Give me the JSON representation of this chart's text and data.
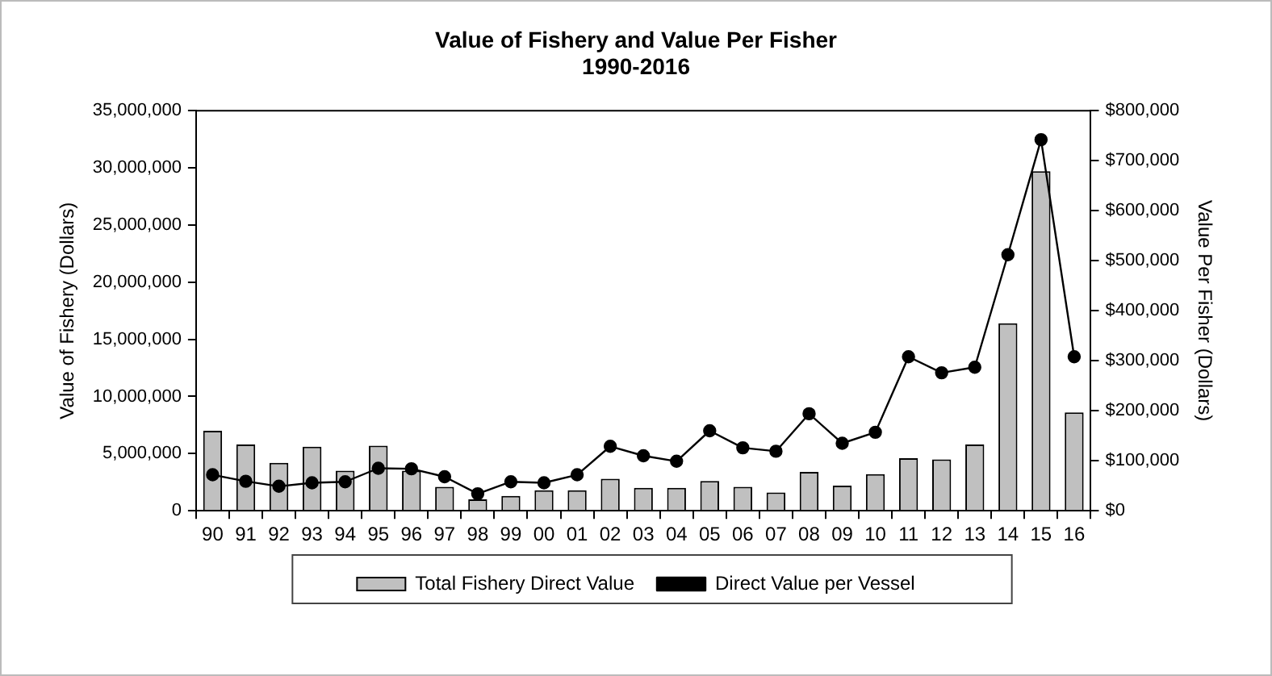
{
  "chart_data": {
    "type": "bar",
    "title": "Value of Fishery and Value Per Fisher",
    "subtitle": "1990-2016",
    "ylabel": "Value of Fishery (Dollars)",
    "y2label": "Value Per Fisher (Dollars)",
    "categories": [
      "90",
      "91",
      "92",
      "93",
      "94",
      "95",
      "96",
      "97",
      "98",
      "99",
      "00",
      "01",
      "02",
      "03",
      "04",
      "05",
      "06",
      "07",
      "08",
      "09",
      "10",
      "11",
      "12",
      "13",
      "14",
      "15",
      "16"
    ],
    "series": [
      {
        "name": "Total Fishery Direct Value",
        "color": "#c0c0c0",
        "values": [
          7000000,
          5800000,
          4200000,
          5600000,
          3500000,
          5700000,
          3500000,
          2100000,
          1000000,
          1300000,
          1800000,
          1800000,
          2800000,
          2000000,
          2000000,
          2600000,
          2100000,
          1600000,
          3400000,
          2200000,
          3200000,
          4600000,
          4500000,
          5800000,
          16400000,
          29700000,
          8600000
        ]
      },
      {
        "name": "Direct Value per Vessel",
        "type": "line",
        "axis": "y2",
        "color": "#000000",
        "marker": "circle",
        "values": [
          72000,
          59000,
          49000,
          56000,
          58000,
          85000,
          84000,
          68000,
          34000,
          58000,
          56000,
          72000,
          129000,
          110000,
          99000,
          160000,
          126000,
          119000,
          194000,
          135000,
          157000,
          308000,
          276000,
          287000,
          512000,
          742000,
          308000
        ]
      }
    ],
    "ylim": [
      0,
      35000000
    ],
    "yticks": [
      {
        "value": 0,
        "label": "0"
      },
      {
        "value": 5000000,
        "label": "5,000,000"
      },
      {
        "value": 10000000,
        "label": "10,000,000"
      },
      {
        "value": 15000000,
        "label": "15,000,000"
      },
      {
        "value": 20000000,
        "label": "20,000,000"
      },
      {
        "value": 25000000,
        "label": "25,000,000"
      },
      {
        "value": 30000000,
        "label": "30,000,000"
      },
      {
        "value": 35000000,
        "label": "35,000,000"
      }
    ],
    "y2lim": [
      0,
      800000
    ],
    "y2ticks": [
      {
        "value": 0,
        "label": "$0"
      },
      {
        "value": 100000,
        "label": "$100,000"
      },
      {
        "value": 200000,
        "label": "$200,000"
      },
      {
        "value": 300000,
        "label": "$300,000"
      },
      {
        "value": 400000,
        "label": "$400,000"
      },
      {
        "value": 500000,
        "label": "$500,000"
      },
      {
        "value": 600000,
        "label": "$600,000"
      },
      {
        "value": 700000,
        "label": "$700,000"
      },
      {
        "value": 800000,
        "label": "$800,000"
      }
    ],
    "grid": false,
    "legend": "bottom"
  }
}
